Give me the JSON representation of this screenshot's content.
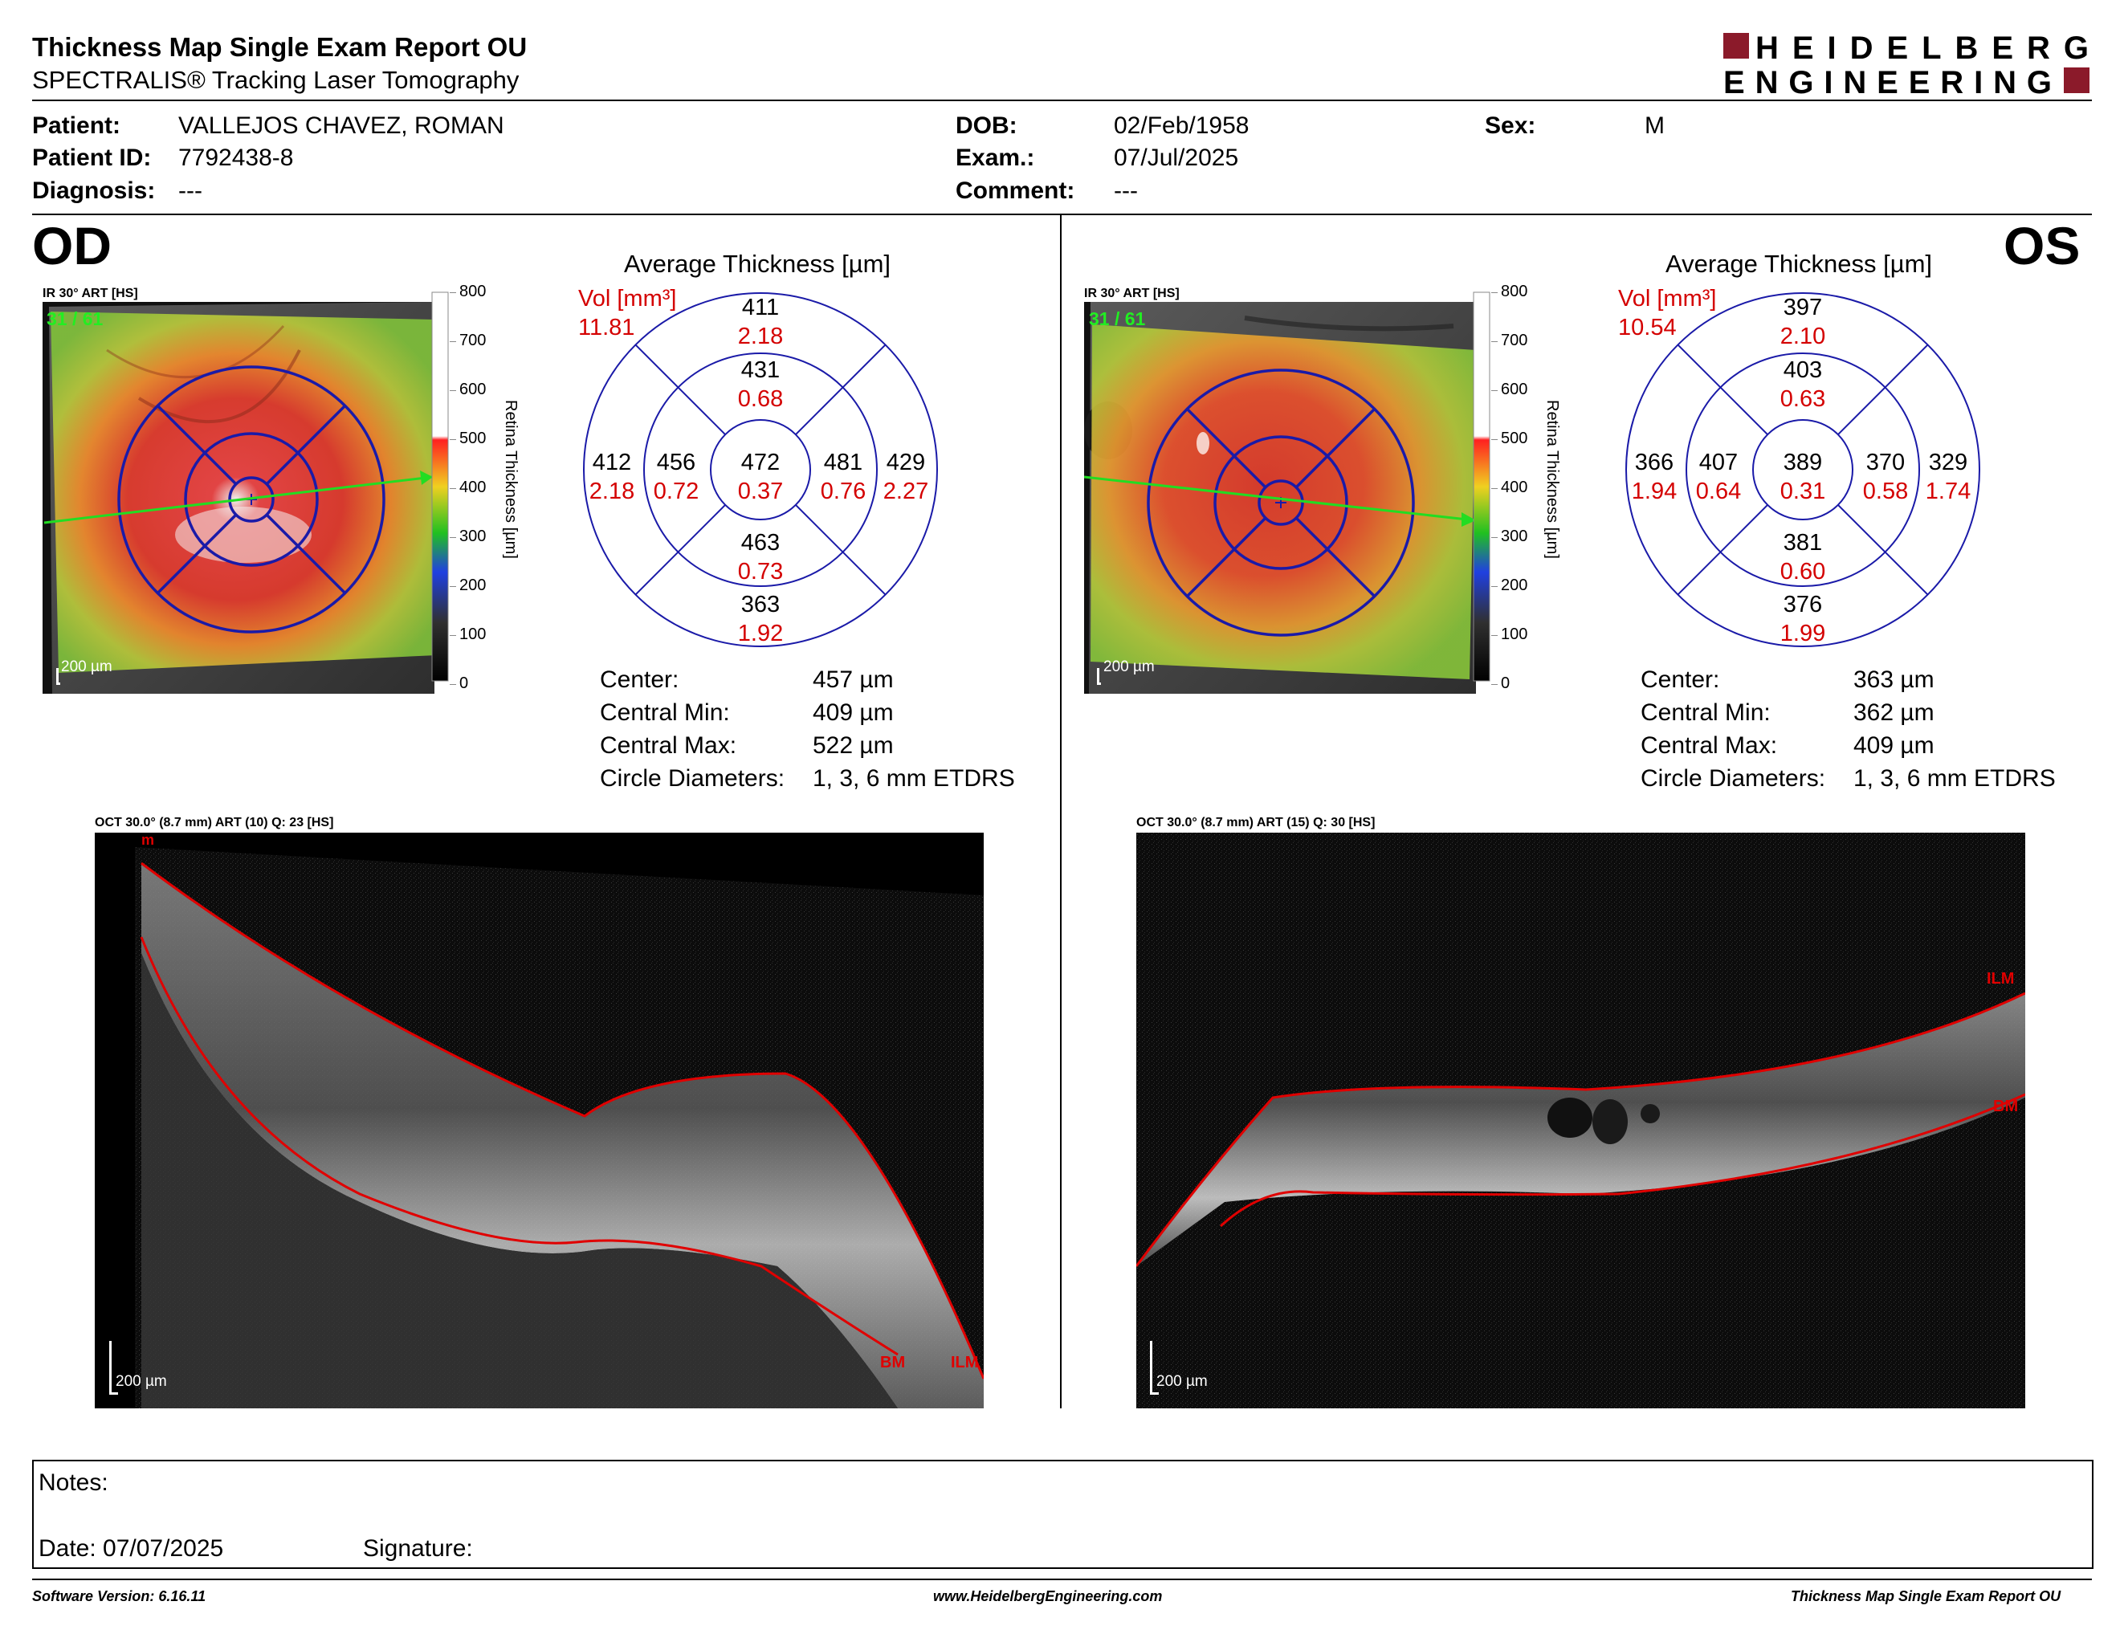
{
  "header": {
    "title": "Thickness Map Single Exam Report OU",
    "subtitle": "SPECTRALIS® Tracking Laser Tomography",
    "logo_line1": "HEIDELBERG",
    "logo_line2": "ENGINEERING"
  },
  "patient": {
    "patient_label": "Patient:",
    "patient_value": "VALLEJOS CHAVEZ, ROMAN",
    "id_label": "Patient ID:",
    "id_value": "7792438-8",
    "diagnosis_label": "Diagnosis:",
    "diagnosis_value": "---",
    "dob_label": "DOB:",
    "dob_value": "02/Feb/1958",
    "exam_label": "Exam.:",
    "exam_value": "07/Jul/2025",
    "comment_label": "Comment:",
    "comment_value": "---",
    "sex_label": "Sex:",
    "sex_value": "M"
  },
  "colorbar": {
    "ticks": [
      "800",
      "700",
      "600",
      "500",
      "400",
      "300",
      "200",
      "100",
      "0"
    ],
    "title": "Retina Thickness [µm]"
  },
  "od": {
    "eye": "OD",
    "fundus_caption": "IR 30° ART [HS]",
    "frame": "31 / 61",
    "scale": "200 µm",
    "etdrs_title": "Average Thickness [µm]",
    "vol_label": "Vol [mm³]",
    "vol_value": "11.81",
    "sectors": {
      "center": {
        "t": "472",
        "v": "0.37"
      },
      "inner_superior": {
        "t": "431",
        "v": "0.68"
      },
      "inner_inferior": {
        "t": "463",
        "v": "0.73"
      },
      "inner_left": {
        "t": "456",
        "v": "0.72"
      },
      "inner_right": {
        "t": "481",
        "v": "0.76"
      },
      "outer_superior": {
        "t": "411",
        "v": "2.18"
      },
      "outer_inferior": {
        "t": "363",
        "v": "1.92"
      },
      "outer_left": {
        "t": "412",
        "v": "2.18"
      },
      "outer_right": {
        "t": "429",
        "v": "2.27"
      }
    },
    "stats": [
      {
        "label": "Center:",
        "value": "457 µm"
      },
      {
        "label": "Central Min:",
        "value": "409 µm"
      },
      {
        "label": "Central Max:",
        "value": "522 µm"
      },
      {
        "label": "Circle Diameters:",
        "value": "1, 3, 6 mm ETDRS"
      }
    ],
    "oct_caption": "OCT 30.0° (8.7 mm) ART (10) Q: 23 [HS]",
    "oct_labels": {
      "top": "m",
      "bm": "BM",
      "ilm": "ILM"
    },
    "oct_scale": "200 µm"
  },
  "os": {
    "eye": "OS",
    "fundus_caption": "IR 30° ART [HS]",
    "frame": "31 / 61",
    "scale": "200 µm",
    "etdrs_title": "Average Thickness [µm]",
    "vol_label": "Vol [mm³]",
    "vol_value": "10.54",
    "sectors": {
      "center": {
        "t": "389",
        "v": "0.31"
      },
      "inner_superior": {
        "t": "403",
        "v": "0.63"
      },
      "inner_inferior": {
        "t": "381",
        "v": "0.60"
      },
      "inner_left": {
        "t": "407",
        "v": "0.64"
      },
      "inner_right": {
        "t": "370",
        "v": "0.58"
      },
      "outer_superior": {
        "t": "397",
        "v": "2.10"
      },
      "outer_inferior": {
        "t": "376",
        "v": "1.99"
      },
      "outer_left": {
        "t": "366",
        "v": "1.94"
      },
      "outer_right": {
        "t": "329",
        "v": "1.74"
      }
    },
    "stats": [
      {
        "label": "Center:",
        "value": "363 µm"
      },
      {
        "label": "Central Min:",
        "value": "362 µm"
      },
      {
        "label": "Central Max:",
        "value": "409 µm"
      },
      {
        "label": "Circle Diameters:",
        "value": "1, 3, 6 mm ETDRS"
      }
    ],
    "oct_caption": "OCT 30.0° (8.7 mm) ART (15) Q: 30 [HS]",
    "oct_labels": {
      "ilm": "ILM",
      "bm": "BM"
    },
    "oct_scale": "200 µm"
  },
  "notes": {
    "notes_label": "Notes:",
    "date_label": "Date: 07/07/2025",
    "signature_label": "Signature:"
  },
  "footer": {
    "software": "Software Version: 6.16.11",
    "website": "www.HeidelbergEngineering.com",
    "report": "Thickness Map Single Exam Report OU"
  },
  "colors": {
    "etdrs_lines": "#1a1aa8",
    "volume_red": "#d40000",
    "logo_red": "#8b1a2a",
    "segmentation_red": "#e00000"
  }
}
